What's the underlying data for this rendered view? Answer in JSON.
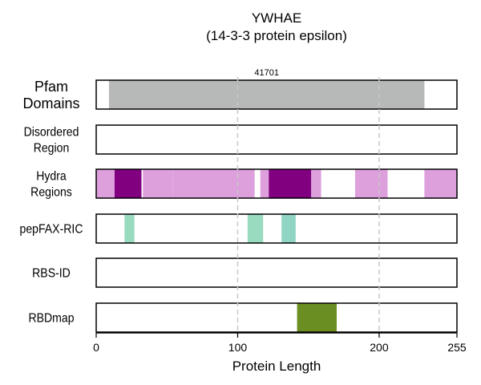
{
  "title": "YWHAE",
  "subtitle": "(14-3-3 protein epsilon)",
  "xlabel": "Protein Length",
  "protein_length": 255,
  "ticks": [
    {
      "value": 0,
      "label": "0"
    },
    {
      "value": 100,
      "label": "100"
    },
    {
      "value": 200,
      "label": "200"
    },
    {
      "value": 255,
      "label": "255"
    }
  ],
  "gridlines": [
    100,
    200
  ],
  "chart_data": {
    "type": "domain-track",
    "title": "YWHAE",
    "subtitle": "(14-3-3 protein epsilon)",
    "xlabel": "Protein Length",
    "xlim": [
      0,
      255
    ],
    "tracks": [
      {
        "name_lines": [
          "Pfam",
          "Domains"
        ],
        "segments": [
          {
            "start": 9,
            "end": 232,
            "color": "#b6b9b7",
            "label": "41701"
          }
        ]
      },
      {
        "name_lines": [
          "Disordered",
          "Region"
        ],
        "segments": []
      },
      {
        "name_lines": [
          "Hydra",
          "Regions"
        ],
        "segments": [
          {
            "start": 0,
            "end": 13,
            "color": "#dda0dd"
          },
          {
            "start": 13,
            "end": 32,
            "color": "#800080"
          },
          {
            "start": 33,
            "end": 54,
            "color": "#dda0dd"
          },
          {
            "start": 54,
            "end": 112,
            "color": "#dda0dd"
          },
          {
            "start": 116,
            "end": 122,
            "color": "#dda0dd"
          },
          {
            "start": 122,
            "end": 152,
            "color": "#800080"
          },
          {
            "start": 152,
            "end": 159,
            "color": "#dda0dd"
          },
          {
            "start": 183,
            "end": 206,
            "color": "#dda0dd"
          },
          {
            "start": 232,
            "end": 255,
            "color": "#dda0dd"
          }
        ]
      },
      {
        "name_lines": [
          "pepFAX-RIC"
        ],
        "segments": [
          {
            "start": 20,
            "end": 27,
            "color": "#99dbbf"
          },
          {
            "start": 107,
            "end": 118,
            "color": "#99dbbf"
          },
          {
            "start": 131,
            "end": 141,
            "color": "#90d4c4"
          }
        ]
      },
      {
        "name_lines": [
          "RBS-ID"
        ],
        "segments": []
      },
      {
        "name_lines": [
          "RBDmap"
        ],
        "segments": [
          {
            "start": 142,
            "end": 170,
            "color": "#6b8e23"
          }
        ]
      }
    ]
  }
}
